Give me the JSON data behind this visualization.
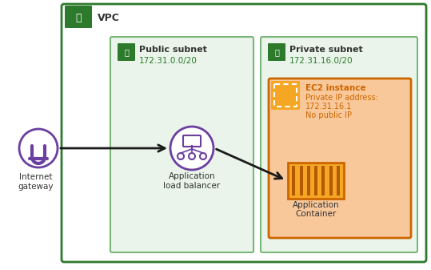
{
  "bg_color": "#ffffff",
  "vpc_border_color": "#2d7a2d",
  "vpc_bg_color": "#ffffff",
  "vpc_label": "VPC",
  "public_subnet_bg": "#eaf4ea",
  "public_subnet_border": "#7ab87a",
  "public_subnet_label": "Public subnet",
  "public_subnet_ip": "172.31.0.0/20",
  "private_subnet_bg": "#eaf4ea",
  "private_subnet_border": "#7ab87a",
  "private_subnet_label": "Private subnet",
  "private_subnet_ip": "172.31.16.0/20",
  "subnet_icon_color": "#2d7a2d",
  "ec2_box_bg": "#f9c89a",
  "ec2_box_border": "#cc6600",
  "ec2_label_line1": "EC2 instance",
  "ec2_label_line2": "Private IP address:",
  "ec2_label_line3": "172.31.16.1",
  "ec2_label_line4": "No public IP",
  "container_label": "Application\nContainer",
  "alb_label": "Application\nload balancer",
  "igw_label": "Internet\ngateway",
  "arrow_color": "#1a1a1a",
  "purple_color": "#6b3fa0",
  "orange_icon_color": "#cc6600",
  "orange_fill": "#f5a623",
  "orange_light": "#f9c89a",
  "text_color": "#333333"
}
